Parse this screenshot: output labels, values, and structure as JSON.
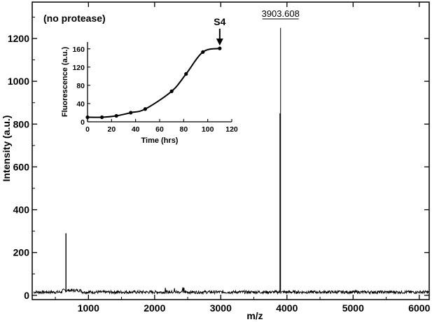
{
  "chart_data": [
    {
      "type": "line",
      "annotation": "(no protease)",
      "xlabel": "m/z",
      "ylabel": "Intensity (a.u.)",
      "xlim": [
        150,
        6150
      ],
      "ylim": [
        -20,
        1370
      ],
      "xticks": [
        1000,
        2000,
        3000,
        4000,
        5000,
        6000
      ],
      "xtick_labels": [
        "1000",
        "2000",
        "3000",
        "4000",
        "5000",
        "6000"
      ],
      "yticks": [
        0,
        200,
        400,
        600,
        800,
        1000,
        1200
      ],
      "ytick_labels": [
        "0",
        "200",
        "400",
        "600",
        "800",
        "1000",
        "1200"
      ],
      "baseline_level": 15,
      "peaks": [
        {
          "x": 660,
          "y": 290
        },
        {
          "x": 3896,
          "y": 850
        },
        {
          "x": 3903.608,
          "y": 1250
        }
      ],
      "peak_label": "3903.608",
      "peak_label_x": 3903.608
    },
    {
      "type": "line",
      "xlabel": "Time (hrs)",
      "ylabel": "Fluorescence (a.u.)",
      "xlim": [
        0,
        120
      ],
      "ylim": [
        0,
        175
      ],
      "xticks": [
        0,
        20,
        40,
        60,
        80,
        100,
        120
      ],
      "xtick_labels": [
        "0",
        "20",
        "40",
        "60",
        "80",
        "100",
        "120"
      ],
      "yticks": [
        0,
        40,
        80,
        120,
        160
      ],
      "ytick_labels": [
        "0",
        "40",
        "80",
        "120",
        "160"
      ],
      "x": [
        0,
        12,
        24,
        36,
        48,
        70,
        82,
        96,
        110
      ],
      "y": [
        10,
        10,
        13,
        20,
        28,
        67,
        105,
        153,
        161
      ],
      "arrow_label": "S4",
      "arrow_x": 110
    }
  ],
  "colors": {
    "line": "#000000",
    "background": "#ffffff"
  }
}
